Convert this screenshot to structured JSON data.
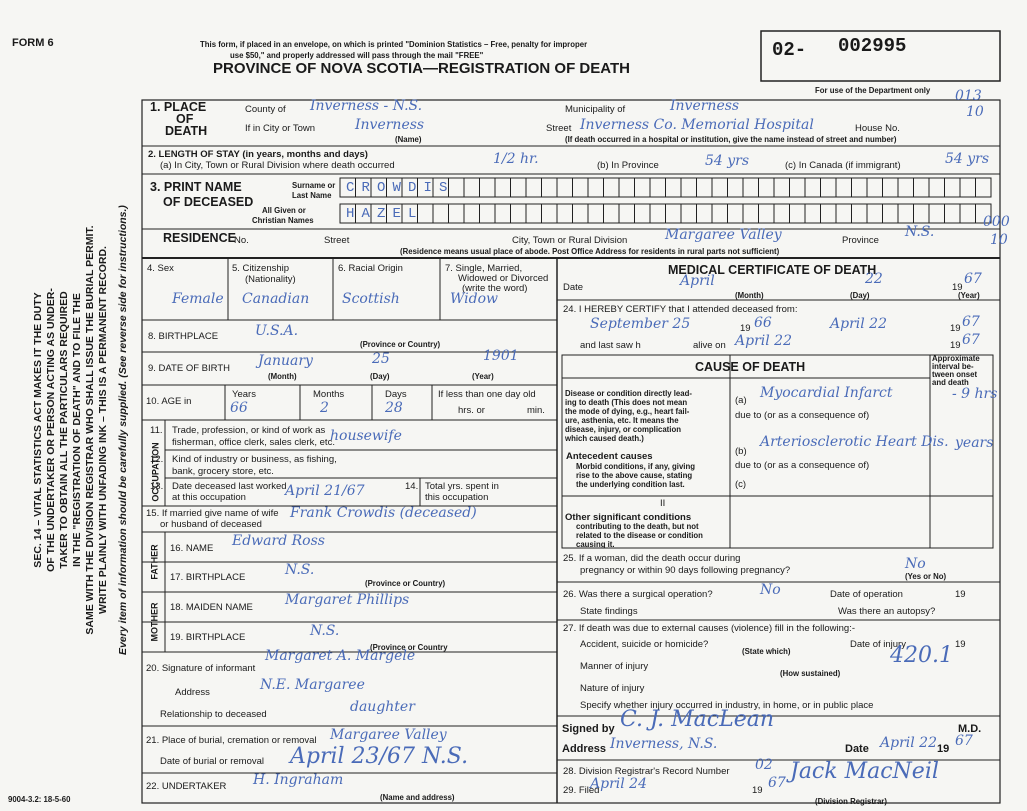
{
  "header": {
    "form": "FORM 6",
    "notice_1": "This form, if placed in an envelope, on which is printed \"Dominion Statistics – Free, penalty for improper",
    "notice_2": "use $50,\" and properly addressed will pass through the mail \"FREE\"",
    "title": "PROVINCE OF NOVA SCOTIA—REGISTRATION OF DEATH",
    "reg_prefix": "02-",
    "reg_number": "002995",
    "dept_note": "For use of the Department only",
    "dept_codes": [
      "013",
      "10",
      "000",
      "10"
    ]
  },
  "place": {
    "heading_1": "1. PLACE",
    "heading_2": "OF",
    "heading_3": "DEATH",
    "county_label": "County of",
    "county": "Inverness - N.S.",
    "municipality_label": "Municipality of",
    "municipality": "Inverness",
    "city_label": "If in City or Town",
    "city": "Inverness",
    "name_caption": "(Name)",
    "street_label": "Street",
    "street": "Inverness Co. Memorial Hospital",
    "house_label": "House No.",
    "note": "(If death occurred in a hospital or institution, give the name instead of street and number)"
  },
  "stay": {
    "heading": "2. LENGTH OF STAY (in years, months and days)",
    "a_label": "(a) In City, Town or Rural Division where death occurred",
    "a": "1/2 hr.",
    "b_label": "(b) In Province",
    "b": "54 yrs",
    "c_label": "(c) In Canada (if immigrant)",
    "c": "54 yrs"
  },
  "name": {
    "heading_1": "3. PRINT NAME",
    "heading_2": "OF DECEASED",
    "surname_label_1": "Surname or",
    "surname_label_2": "Last Name",
    "surname": "CROWDIS",
    "given_label_1": "All Given or",
    "given_label_2": "Christian Names",
    "given": "HAZEL"
  },
  "residence": {
    "heading": "RESIDENCE",
    "no_label": "No.",
    "street_label": "Street",
    "division_label": "City, Town or Rural Division",
    "division": "Margaree Valley",
    "province_label": "Province",
    "province": "N.S.",
    "note": "(Residence means usual place of abode. Post Office Address for residents in rural parts not sufficient)"
  },
  "personal": {
    "sex_label": "4. Sex",
    "sex": "Female",
    "citizenship_label": "5. Citizenship",
    "citizenship_caption": "(Nationality)",
    "citizenship": "Canadian",
    "racial_label": "6. Racial Origin",
    "racial": "Scottish",
    "status_label_1": "7. Single, Married,",
    "status_label_2": "Widowed or Divorced",
    "status_label_3": "(write the word)",
    "status": "Widow"
  },
  "birth": {
    "place_label": "8. BIRTHPLACE",
    "place": "U.S.A.",
    "place_caption": "(Province or Country)",
    "date_label": "9. DATE OF BIRTH",
    "month": "January",
    "day": "25",
    "year": "1901",
    "month_caption": "(Month)",
    "day_caption": "(Day)",
    "year_caption": "(Year)"
  },
  "age": {
    "label": "10. AGE in",
    "years_label": "Years",
    "years": "66",
    "months_label": "Months",
    "months": "2",
    "days_label": "Days",
    "days": "28",
    "under_day": "If less than one day old",
    "hrs": "hrs. or",
    "min": "min."
  },
  "occupation": {
    "heading": "OCCUPATION",
    "trade_no": "11.",
    "trade_1": "Trade, profession, or kind of work as",
    "trade_2": "fisherman, office clerk, sales clerk, etc.",
    "trade": "housewife",
    "industry_no": "12.",
    "industry_1": "Kind of industry or business, as fishing,",
    "industry_2": "bank, grocery store, etc.",
    "last_no": "13.",
    "last_1": "Date deceased last worked",
    "last_2": "at this occupation",
    "last": "April 21/67",
    "total_no": "14.",
    "total_1": "Total yrs. spent in",
    "total_2": "this occupation"
  },
  "spouse": {
    "label_1": "15. If married give name of wife",
    "label_2": "or husband of deceased",
    "name": "Frank Crowdis (deceased)"
  },
  "father": {
    "heading": "FATHER",
    "name_label": "16. NAME",
    "name": "Edward Ross",
    "birthplace_label": "17. BIRTHPLACE",
    "birthplace": "N.S.",
    "caption": "(Province or Country)"
  },
  "mother": {
    "heading": "MOTHER",
    "maiden_label": "18. MAIDEN NAME",
    "maiden": "Margaret Phillips",
    "birthplace_label": "19. BIRTHPLACE",
    "birthplace": "N.S.",
    "caption": "(Province or Country"
  },
  "informant": {
    "signature_label": "20. Signature of informant",
    "signature": "Margaret A. Margele",
    "address_label": "Address",
    "address": "N.E. Margaree",
    "relationship_label": "Relationship to deceased",
    "relationship": "daughter"
  },
  "burial": {
    "place_label": "21. Place of burial, cremation or removal",
    "place": "Margaree Valley",
    "date_label": "Date of burial or removal",
    "date": "April 23/67 N.S."
  },
  "undertaker": {
    "label": "22. UNDERTAKER",
    "name": "H. Ingraham",
    "caption": "(Name and address)"
  },
  "medical": {
    "heading": "MEDICAL CERTIFICATE OF DEATH",
    "date_label": "Date",
    "month": "April",
    "day": "22",
    "year_prefix": "19",
    "year": "67",
    "month_caption": "(Month)",
    "day_caption": "(Day)",
    "year_caption": "(Year)",
    "certify_label": "24. I HEREBY CERTIFY that I attended deceased from:",
    "from": "September 25",
    "from_year_prefix": "19",
    "from_year": "66",
    "to": "April 22",
    "to_year_prefix": "19",
    "to_year": "67",
    "last_seen_label_1": "and last saw h",
    "last_seen_label_2": "alive on",
    "last_seen": "April 22",
    "last_year_prefix": "19",
    "last_year": "67",
    "cause_heading": "CAUSE OF DEATH",
    "interval": [
      "Approximate",
      "interval be-",
      "tween onset",
      "and death"
    ],
    "direct": [
      "Disease or condition directly lead-",
      "ing to death (This does not mean",
      "the mode of dying, e.g., heart fail-",
      "ure, asthenia, etc. It means the",
      "disease, injury, or complication",
      "which caused death.)"
    ],
    "a_label": "(a)",
    "a": "Myocardial Infarct",
    "a_interval": "- 9 hrs",
    "due_1": "due to (or as a consequence of)",
    "b_label": "(b)",
    "b": "Arteriosclerotic Heart Dis.",
    "b_interval": "years",
    "due_2": "due to (or as a consequence of)",
    "c_label": "(c)",
    "antecedent": [
      "Antecedent causes",
      "Morbid conditions, if any, giving",
      "rise to the above cause, stating",
      "the underlying condition last."
    ],
    "roman_2": "II",
    "other": [
      "Other significant conditions",
      "contributing to the death, but not",
      "related to the disease or condition",
      "causing it."
    ],
    "pregnancy_1": "25. If a woman, did the death occur during",
    "pregnancy_2": "pregnancy or within 90 days following pregnancy?",
    "pregnancy": "No",
    "yes_no": "(Yes or No)",
    "operation_label": "26. Was there a surgical operation?",
    "operation": "No",
    "op_date_label": "Date of operation",
    "op_year_prefix": "19",
    "findings_label": "State findings",
    "autopsy_label": "Was there an autopsy?",
    "external_label": "27. If death was due to external causes (violence) fill in the following:-",
    "accident_label": "Accident, suicide or homicide?",
    "state_which": "(State which)",
    "injury_date_label": "Date of injury",
    "injury_year_prefix": "19",
    "code": "420.1",
    "manner_label": "Manner of injury",
    "how": "(How sustained)",
    "nature_label": "Nature of injury",
    "specify_label": "Specify whether injury occurred in industry, in home, or in public place",
    "signed_label": "Signed by",
    "signed": "C. J. MacLean",
    "md": "M.D.",
    "address_label": "Address",
    "address": "Inverness, N.S.",
    "date": "April 22",
    "date_year_prefix": "19",
    "date_year": "67",
    "record_label": "28. Division Registrar's Record Number",
    "record": "02",
    "filed_label": "29. Filed",
    "filed": "April 24",
    "filed_year_prefix": "19",
    "filed_year": "67",
    "registrar": "Jack MacNeil",
    "registrar_caption": "(Division Registrar)"
  },
  "side_text": [
    "SEC. 14 – VITAL STATISTICS ACT MAKES IT THE DUTY",
    "OF THE UNDERTAKER OR PERSON ACTING AS UNDER-",
    "TAKER TO OBTAIN ALL THE PARTICULARS REQUIRED",
    "IN THE \"REGISTRATION OF DEATH\" AND TO FILE THE",
    "SAME WITH THE DIVISION REGISTRAR WHO SHALL ISSUE THE BURIAL PERMIT.",
    "WRITE PLAINLY WITH UNFADING INK – THIS IS A PERMANENT RECORD.",
    "Every item of information should be carefully supplied. (See reverse side for instructions.)"
  ],
  "footer": {
    "code": "9004-3.2: 18-5-60"
  }
}
